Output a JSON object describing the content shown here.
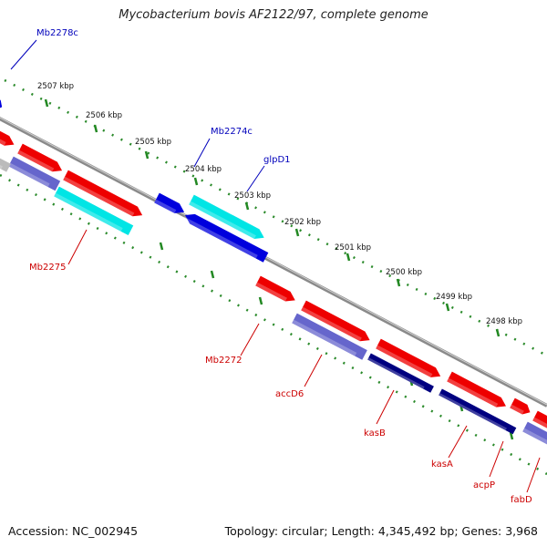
{
  "title": "Mycobacterium bovis AF2122/97, complete genome",
  "footer": {
    "accession": "Accession: NC_002945",
    "summary": "Topology: circular; Length: 4,345,492 bp; Genes: 3,968"
  },
  "colors": {
    "forward_gene": "#ee0000",
    "reverse_gene": "#0000dd",
    "cds_light": "#00e5e5",
    "cds_blue": "#6666cc",
    "cds_navy": "#000080",
    "backbone": "#888888",
    "ruler": "#228822",
    "label_forward": "#cc0000",
    "label_reverse": "#0000bb"
  },
  "ruler_ticks": [
    "2498 kbp",
    "2499 kbp",
    "2500 kbp",
    "2501 kbp",
    "2502 kbp",
    "2503 kbp",
    "2504 kbp",
    "2505 kbp",
    "2506 kbp",
    "2507 kbp"
  ],
  "gene_labels": [
    {
      "id": "Mb2278c",
      "text": "Mb2278c",
      "strand": "reverse"
    },
    {
      "id": "Mb2274c",
      "text": "Mb2274c",
      "strand": "reverse"
    },
    {
      "id": "glpD1",
      "text": "glpD1",
      "strand": "reverse"
    },
    {
      "id": "Mb2275",
      "text": "Mb2275",
      "strand": "forward"
    },
    {
      "id": "Mb2272",
      "text": "Mb2272",
      "strand": "forward"
    },
    {
      "id": "accD6",
      "text": "accD6",
      "strand": "forward"
    },
    {
      "id": "kasB",
      "text": "kasB",
      "strand": "forward"
    },
    {
      "id": "kasA",
      "text": "kasA",
      "strand": "forward"
    },
    {
      "id": "acpP",
      "text": "acpP",
      "strand": "forward"
    },
    {
      "id": "fabD",
      "text": "fabD",
      "strand": "forward"
    }
  ]
}
